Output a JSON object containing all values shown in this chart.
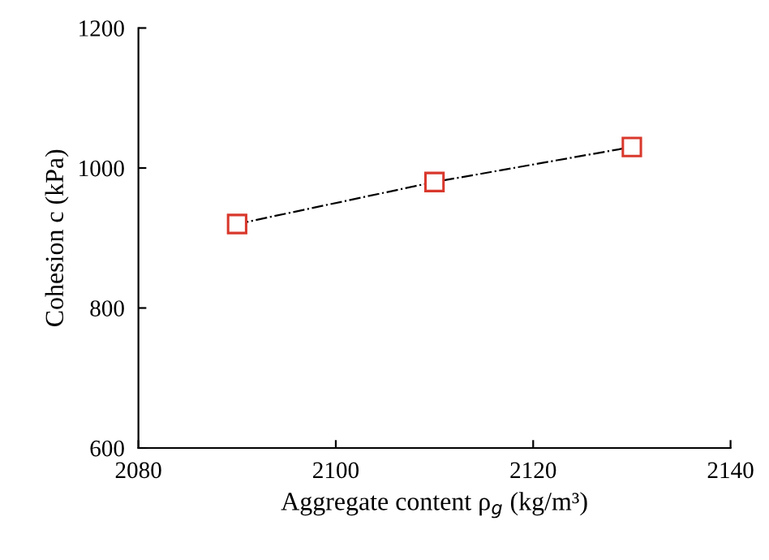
{
  "chart_data": {
    "type": "line",
    "xlabel": "Aggregate content ρ$_{g}$ (kg/m³)",
    "ylabel": "Cohesion c (kPa)",
    "x": [
      2090,
      2110,
      2130
    ],
    "series": [
      {
        "color": "#d9382c",
        "values": [
          920,
          980,
          1030
        ]
      }
    ],
    "xlim": [
      2080,
      2140
    ],
    "xticks": [
      2080,
      2100,
      2120,
      2140
    ],
    "ylim": [
      600,
      1200
    ],
    "yticks": [
      600,
      800,
      1000,
      1200
    ],
    "marker": "square",
    "line_style": "dashdot",
    "grid": false
  }
}
